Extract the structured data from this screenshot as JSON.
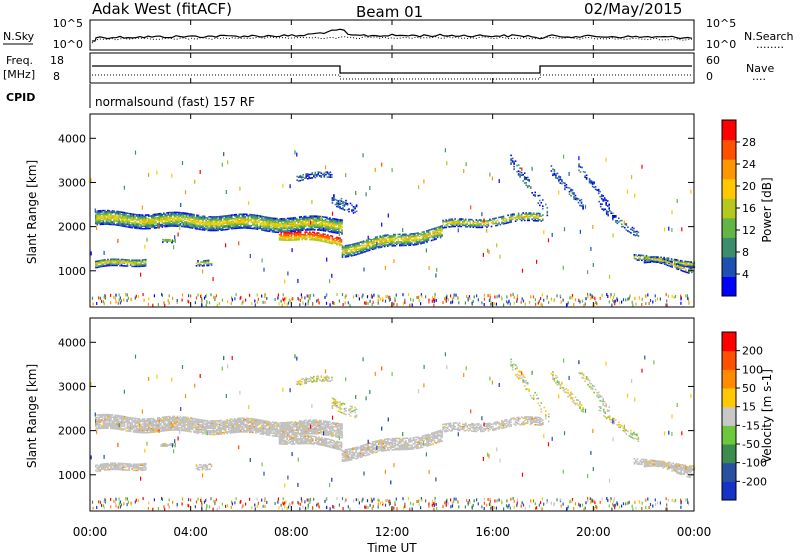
{
  "header": {
    "station": "Adak West (fitACF)",
    "beam": "Beam 01",
    "date": "02/May/2015"
  },
  "top_panels": {
    "nsky_label": "N.Sky",
    "nsearch_label": "N.Search",
    "nsearch_legend": "........",
    "noise_ticks_left": [
      "10^5",
      "10^0"
    ],
    "noise_ticks_right": [
      "10^5",
      "10^0"
    ],
    "freq_label": "Freq.",
    "freq_unit": "[MHz]",
    "freq_ticks": [
      "18",
      "8"
    ],
    "nave_label": "Nave",
    "nave_legend": "....",
    "nave_ticks": [
      "60",
      "0"
    ],
    "cpid_label": "CPID",
    "cpid_text": "normalsound (fast) 157 RF"
  },
  "chart_data": [
    {
      "type": "heatmap",
      "name": "power",
      "ylabel": "Slant Range [km]",
      "yticks": [
        "4000",
        "3000",
        "2000",
        "1000"
      ],
      "ylim": [
        180,
        4550
      ],
      "xlim": [
        0,
        24
      ],
      "colorbar_label": "Power [dB]",
      "colorbar_ticks": [
        "28",
        "24",
        "20",
        "16",
        "12",
        "8",
        "4"
      ],
      "colors": [
        "#0000ff",
        "#1e50b4",
        "#3c8c6e",
        "#64b446",
        "#b4c81e",
        "#ffc800",
        "#ff9600",
        "#ff5000",
        "#ff0000"
      ]
    },
    {
      "type": "heatmap",
      "name": "velocity",
      "ylabel": "Slant Range [km]",
      "yticks": [
        "4000",
        "3000",
        "2000",
        "1000"
      ],
      "ylim": [
        180,
        4550
      ],
      "xlim": [
        0,
        24
      ],
      "colorbar_label": "Velocity [m s-1]",
      "colorbar_ticks": [
        "200",
        "100",
        "50",
        "15",
        "-15",
        "-50",
        "-100",
        "-200"
      ],
      "colors": [
        "#1432c8",
        "#2850a0",
        "#3c8c50",
        "#6ec83c",
        "#c8c8c8",
        "#ffc800",
        "#ff8c00",
        "#ff5000",
        "#ff0000"
      ],
      "ground_scatter_color": "#c0c0c0"
    }
  ],
  "time_axis": {
    "ticks": [
      "00:00",
      "04:00",
      "08:00",
      "12:00",
      "16:00",
      "20:00",
      "00:00"
    ],
    "label": "Time UT"
  }
}
